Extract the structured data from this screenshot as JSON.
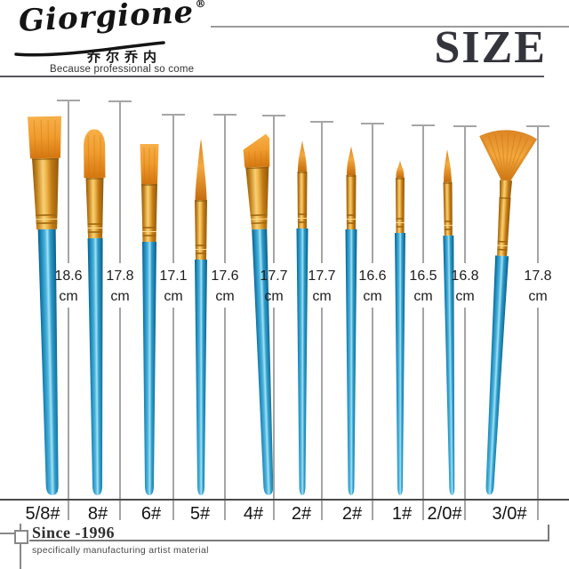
{
  "brand": {
    "name": "Giorgione",
    "registered": "®",
    "chinese": "乔尔乔内",
    "tagline": "Because professional so come",
    "since": "Since -1996",
    "subline": "specifically manufacturing artist material"
  },
  "header": {
    "title": "SIZE"
  },
  "brushes": [
    {
      "label": "5/8#",
      "type": "flat-wash-brush",
      "length": "18.6",
      "unit": "cm"
    },
    {
      "label": "8#",
      "type": "filbert-brush",
      "length": "17.8",
      "unit": "cm"
    },
    {
      "label": "6#",
      "type": "flat-brush",
      "length": "17.1",
      "unit": "cm"
    },
    {
      "label": "5#",
      "type": "round-brush",
      "length": "17.6",
      "unit": "cm"
    },
    {
      "label": "4#",
      "type": "angled-brush",
      "length": "17.7",
      "unit": "cm"
    },
    {
      "label": "2#",
      "type": "round-brush",
      "length": "17.7",
      "unit": "cm"
    },
    {
      "label": "2#",
      "type": "round-brush",
      "length": "16.6",
      "unit": "cm"
    },
    {
      "label": "1#",
      "type": "round-brush",
      "length": "16.5",
      "unit": "cm"
    },
    {
      "label": "2/0#",
      "type": "round-brush",
      "length": "16.8",
      "unit": "cm"
    },
    {
      "label": "3/0#",
      "type": "fan-brush",
      "length": "17.8",
      "unit": "cm"
    }
  ],
  "colors": {
    "handle_blue": "#1E8FC0",
    "handle_blue_dark": "#0A5C88",
    "handle_blue_light": "#A6E2F5",
    "ferrule_gold": "#D89428",
    "ferrule_gold_light": "#F7D077",
    "ferrule_gold_dark": "#8F5A0E",
    "bristle_orange": "#F09B2D",
    "bristle_orange_dark": "#C66D0E",
    "ruler_line": "#A5A5A5",
    "title_dark": "#34343C"
  }
}
